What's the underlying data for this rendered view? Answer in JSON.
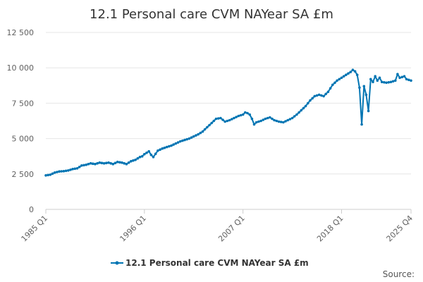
{
  "chart_data": {
    "type": "line",
    "title": "12.1 Personal care CVM NAYear SA £m",
    "xlabel": "",
    "ylabel": "",
    "ylim": [
      0,
      12500
    ],
    "y_ticks": [
      0,
      2500,
      5000,
      7500,
      10000,
      12500
    ],
    "y_tick_labels": [
      "0",
      "2 500",
      "5 000",
      "7 500",
      "10 000",
      "12 500"
    ],
    "x_tick_labels": [
      "1985 Q1",
      "1996 Q1",
      "2007 Q1",
      "2018 Q1",
      "2025 Q4"
    ],
    "x_tick_indices": [
      0,
      44,
      88,
      132,
      163
    ],
    "series": [
      {
        "name": "12.1 Personal care CVM NAYear SA £m",
        "color": "#0075b3",
        "keyframes": [
          [
            0,
            2400
          ],
          [
            2,
            2450
          ],
          [
            4,
            2600
          ],
          [
            6,
            2680
          ],
          [
            8,
            2700
          ],
          [
            10,
            2750
          ],
          [
            12,
            2850
          ],
          [
            14,
            2900
          ],
          [
            16,
            3100
          ],
          [
            18,
            3150
          ],
          [
            20,
            3250
          ],
          [
            22,
            3200
          ],
          [
            24,
            3300
          ],
          [
            26,
            3250
          ],
          [
            28,
            3300
          ],
          [
            30,
            3200
          ],
          [
            32,
            3350
          ],
          [
            34,
            3300
          ],
          [
            36,
            3200
          ],
          [
            38,
            3400
          ],
          [
            40,
            3500
          ],
          [
            42,
            3700
          ],
          [
            43,
            3750
          ],
          [
            44,
            3900
          ],
          [
            45,
            4000
          ],
          [
            46,
            4100
          ],
          [
            47,
            3850
          ],
          [
            48,
            3700
          ],
          [
            50,
            4150
          ],
          [
            52,
            4300
          ],
          [
            54,
            4400
          ],
          [
            56,
            4500
          ],
          [
            58,
            4650
          ],
          [
            60,
            4800
          ],
          [
            62,
            4900
          ],
          [
            64,
            5000
          ],
          [
            66,
            5150
          ],
          [
            68,
            5300
          ],
          [
            70,
            5500
          ],
          [
            72,
            5800
          ],
          [
            74,
            6100
          ],
          [
            76,
            6400
          ],
          [
            78,
            6450
          ],
          [
            80,
            6200
          ],
          [
            82,
            6300
          ],
          [
            84,
            6450
          ],
          [
            86,
            6600
          ],
          [
            88,
            6700
          ],
          [
            89,
            6850
          ],
          [
            90,
            6800
          ],
          [
            91,
            6700
          ],
          [
            92,
            6400
          ],
          [
            93,
            6000
          ],
          [
            94,
            6150
          ],
          [
            96,
            6250
          ],
          [
            98,
            6400
          ],
          [
            100,
            6500
          ],
          [
            102,
            6300
          ],
          [
            104,
            6200
          ],
          [
            106,
            6150
          ],
          [
            108,
            6300
          ],
          [
            110,
            6450
          ],
          [
            112,
            6700
          ],
          [
            114,
            7000
          ],
          [
            116,
            7300
          ],
          [
            118,
            7700
          ],
          [
            120,
            8000
          ],
          [
            122,
            8100
          ],
          [
            124,
            8000
          ],
          [
            126,
            8300
          ],
          [
            128,
            8800
          ],
          [
            130,
            9100
          ],
          [
            132,
            9300
          ],
          [
            134,
            9500
          ],
          [
            136,
            9700
          ],
          [
            137,
            9850
          ],
          [
            138,
            9750
          ],
          [
            139,
            9500
          ],
          [
            140,
            8600
          ],
          [
            141,
            6000
          ],
          [
            142,
            8700
          ],
          [
            143,
            8100
          ],
          [
            144,
            6950
          ],
          [
            145,
            9200
          ],
          [
            146,
            9000
          ],
          [
            147,
            9400
          ],
          [
            148,
            9100
          ],
          [
            149,
            9300
          ],
          [
            150,
            9000
          ],
          [
            152,
            8950
          ],
          [
            154,
            9000
          ],
          [
            156,
            9100
          ],
          [
            157,
            9550
          ],
          [
            158,
            9300
          ],
          [
            160,
            9400
          ],
          [
            161,
            9200
          ],
          [
            163,
            9100
          ]
        ]
      }
    ],
    "legend_position": "bottom-center",
    "source_label": "Source:"
  }
}
